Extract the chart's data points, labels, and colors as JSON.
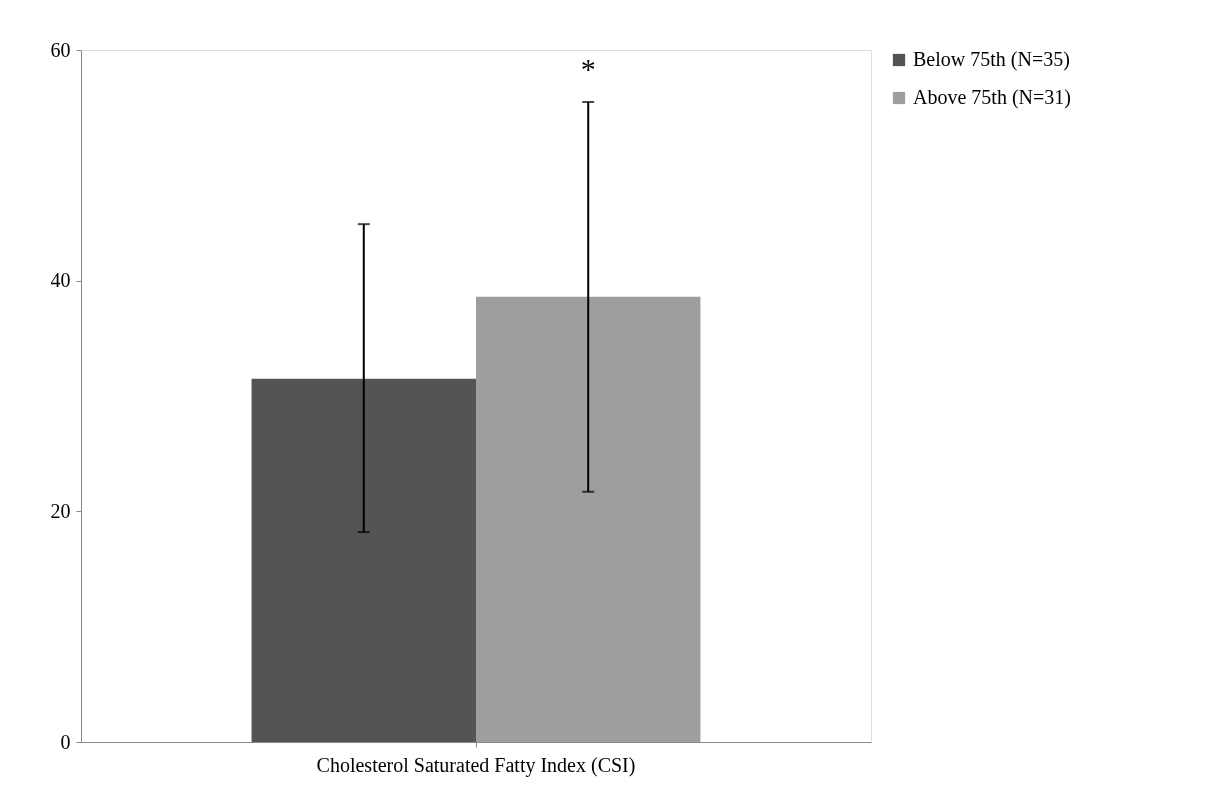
{
  "chart_data": {
    "type": "bar",
    "categories": [
      "Cholesterol Saturated Fatty Index (CSI)"
    ],
    "series": [
      {
        "name": "Below 75th (N=35)",
        "color": "#545454",
        "values": [
          31.5
        ],
        "errors": [
          [
            18.2,
            44.9
          ]
        ]
      },
      {
        "name": "Above 75th (N=31)",
        "color": "#9e9e9e",
        "values": [
          38.6
        ],
        "errors": [
          [
            21.7,
            55.5
          ]
        ]
      }
    ],
    "ylim": [
      0,
      60
    ],
    "yticks": [
      0,
      20,
      40,
      60
    ],
    "grid": false,
    "legend": "right",
    "annotations": [
      "*"
    ]
  }
}
